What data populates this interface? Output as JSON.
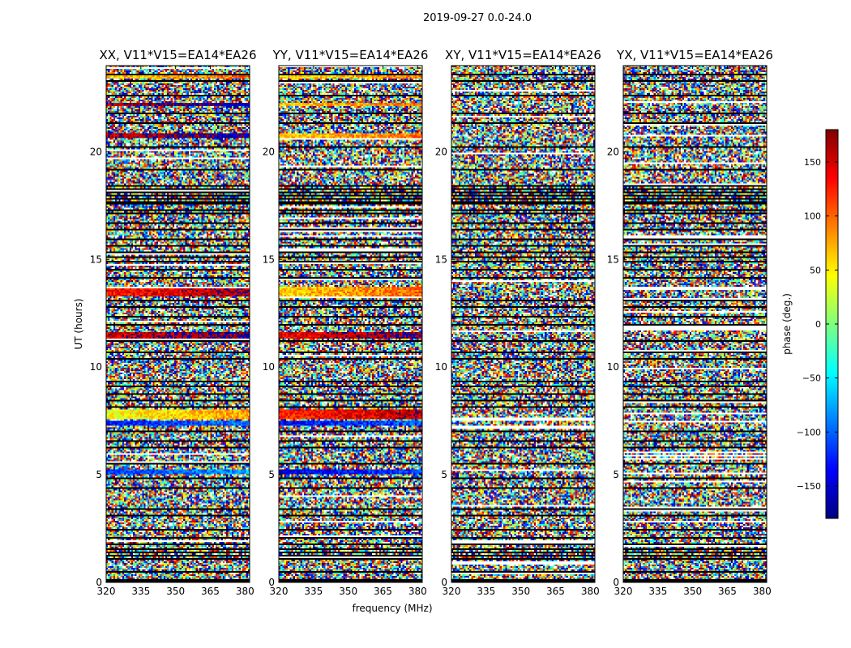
{
  "figure": {
    "suptitle": "2019-09-27 0.0-24.0"
  },
  "chart_data": {
    "type": "heatmap",
    "title": "2019-09-27 0.0-24.0",
    "xlabel": "frequency (MHz)",
    "ylabel": "UT (hours)",
    "xlim": [
      320,
      382
    ],
    "ylim": [
      0,
      24
    ],
    "xticks": [
      320,
      335,
      350,
      365,
      380
    ],
    "yticks": [
      0,
      5,
      10,
      15,
      20
    ],
    "panels": [
      {
        "title": "XX, V11*V15=EA14*EA26",
        "product": "XX",
        "coherent_bands": [
          {
            "ut": [
              5.05,
              5.25
            ],
            "phase": -120
          },
          {
            "ut": [
              7.3,
              7.5
            ],
            "phase": -130
          },
          {
            "ut": [
              7.6,
              8.0
            ],
            "phase": 40
          },
          {
            "ut": [
              11.35,
              11.6
            ],
            "phase": 150
          },
          {
            "ut": [
              13.3,
              13.7
            ],
            "phase": 130
          },
          {
            "ut": [
              20.6,
              20.85
            ],
            "phase": 160
          },
          {
            "ut": [
              22.1,
              22.3
            ],
            "phase": 165
          },
          {
            "ut": [
              23.4,
              23.6
            ],
            "phase": 60
          }
        ]
      },
      {
        "title": "YY, V11*V15=EA14*EA26",
        "product": "YY",
        "coherent_bands": [
          {
            "ut": [
              5.05,
              5.25
            ],
            "phase": -150
          },
          {
            "ut": [
              7.3,
              7.5
            ],
            "phase": -140
          },
          {
            "ut": [
              7.6,
              8.0
            ],
            "phase": 120
          },
          {
            "ut": [
              11.35,
              11.6
            ],
            "phase": 140
          },
          {
            "ut": [
              13.3,
              13.7
            ],
            "phase": 60
          },
          {
            "ut": [
              20.6,
              20.85
            ],
            "phase": 60
          },
          {
            "ut": [
              22.1,
              22.3
            ],
            "phase": 60
          },
          {
            "ut": [
              23.4,
              23.6
            ],
            "phase": 50
          }
        ]
      },
      {
        "title": "XY, V11*V15=EA14*EA26",
        "product": "XY",
        "coherent_bands": []
      },
      {
        "title": "YX, V11*V15=EA14*EA26",
        "product": "YX",
        "coherent_bands": []
      }
    ],
    "flagged_rows_ut": [
      0.0,
      0.15,
      0.45,
      1.05,
      1.25,
      1.35,
      1.55,
      1.75,
      2.05,
      2.45,
      3.1,
      3.4,
      4.35,
      4.85,
      5.5,
      6.25,
      6.6,
      7.0,
      8.15,
      8.45,
      8.75,
      9.1,
      9.35,
      10.35,
      10.7,
      11.2,
      11.95,
      12.35,
      12.75,
      13.1,
      14.1,
      14.5,
      14.85,
      15.1,
      15.35,
      15.6,
      15.95,
      16.35,
      16.65,
      17.1,
      17.3,
      17.55,
      17.65,
      17.8,
      17.95,
      18.1,
      18.25,
      18.45,
      19.2,
      20.2,
      21.3,
      21.8,
      22.6,
      23.25,
      23.55
    ],
    "colorbar": {
      "label": "phase (deg.)",
      "range": [
        -180,
        180
      ],
      "ticks": [
        150,
        100,
        50,
        0,
        -50,
        -100,
        -150
      ],
      "tick_labels": [
        "150",
        "100",
        "50",
        "0",
        "−50",
        "−100",
        "−150"
      ],
      "colormap": "jet",
      "colors": [
        "#00007f",
        "#0000ff",
        "#007fff",
        "#00ffff",
        "#7fff7f",
        "#ffff00",
        "#ff7f00",
        "#ff0000",
        "#7f0000"
      ]
    }
  }
}
